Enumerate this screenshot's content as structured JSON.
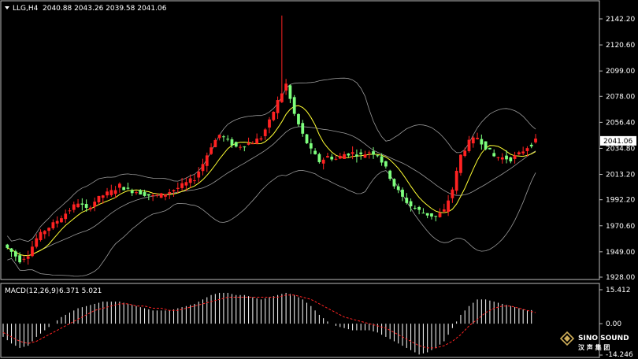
{
  "window": {
    "symbol_label": "LLG,H4",
    "ohlc": "2040.88 2043.26 2039.58 2041.06",
    "dropdown_icon": "triangle-down-icon"
  },
  "price_axis": {
    "labels": [
      "2142.20",
      "2120.60",
      "2099.00",
      "2078.00",
      "2056.40",
      "2034.80",
      "2013.20",
      "1992.20",
      "1970.60",
      "1949.00",
      "1928.00"
    ],
    "current_price": "2041.06"
  },
  "macd": {
    "title": "MACD(12,26,9)",
    "values": "6.371 5.021",
    "axis_labels": [
      "15.412",
      "0.00",
      "-14.246"
    ]
  },
  "logo": {
    "name": "SINO SOUND",
    "subtitle": "汉 声 集 团"
  },
  "colors": {
    "background": "#000000",
    "bull": "#ff2222",
    "bear": "#7dff7d",
    "bands": "#9a9a9a",
    "ma": "#ffff33",
    "signal": "#ff2222",
    "histogram": "#ffffff",
    "border": "#bdbdbd"
  },
  "chart_data": [
    {
      "type": "candlestick",
      "title": "LLG,H4",
      "ylim": [
        1928,
        2142.2
      ],
      "overlays": [
        "bollinger-bands",
        "moving-average"
      ],
      "grid": false,
      "close_path": [
        1955,
        1949,
        1942,
        1947,
        1960,
        1967,
        1972,
        1978,
        1984,
        1990,
        1984,
        1991,
        1996,
        1999,
        2004,
        2000,
        1999,
        1997,
        1995,
        1996,
        1999,
        2002,
        2006,
        2010,
        2022,
        2037,
        2046,
        2041,
        2036,
        2038,
        2040,
        2044,
        2057,
        2074,
        2088,
        2063,
        2046,
        2033,
        2024,
        2028,
        2026,
        2030,
        2031,
        2029,
        2032,
        2030,
        2018,
        2004,
        1994,
        1987,
        1983,
        1980,
        1978,
        1983,
        2001,
        2029,
        2040,
        2044,
        2036,
        2028,
        2027,
        2026,
        2030,
        2036,
        2041
      ]
    },
    {
      "type": "bar",
      "title": "MACD(12,26,9)",
      "ylim": [
        -14.246,
        15.412
      ],
      "series": [
        {
          "name": "MACD",
          "values": [
            -6,
            -9,
            -11,
            -10,
            -6,
            -3,
            0,
            3,
            5,
            7,
            8,
            9,
            10,
            10,
            10,
            9,
            8,
            7,
            6,
            6,
            6,
            7,
            8,
            9,
            11,
            13,
            14,
            14,
            13,
            13,
            12,
            11,
            12,
            13,
            14,
            13,
            11,
            8,
            4,
            1,
            -1,
            -2,
            -3,
            -3,
            -3,
            -4,
            -6,
            -8,
            -10,
            -12,
            -14,
            -13,
            -11,
            -8,
            -2,
            4,
            8,
            11,
            11,
            10,
            9,
            8,
            7,
            6,
            6.371
          ]
        },
        {
          "name": "Signal",
          "values": [
            -4,
            -6,
            -8,
            -9,
            -8,
            -6,
            -4,
            -2,
            0,
            2,
            4,
            6,
            7,
            8,
            9,
            9,
            8,
            8,
            7,
            7,
            6,
            6,
            7,
            8,
            9,
            10,
            11,
            12,
            12,
            12,
            12,
            12,
            12,
            12,
            13,
            13,
            12,
            11,
            9,
            7,
            5,
            3,
            2,
            1,
            0,
            -1,
            -2,
            -4,
            -6,
            -8,
            -10,
            -11,
            -11,
            -10,
            -8,
            -5,
            -1,
            2,
            5,
            7,
            8,
            8,
            7,
            6,
            5.021
          ]
        }
      ]
    }
  ]
}
